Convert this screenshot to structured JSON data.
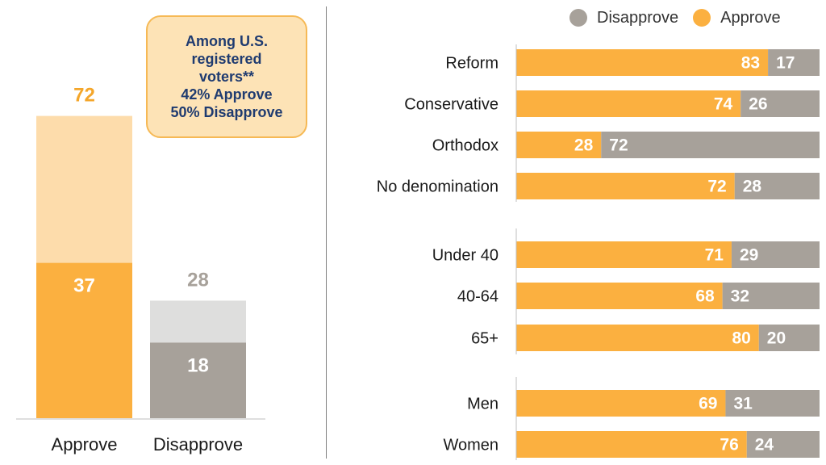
{
  "callout": {
    "lines": [
      "Among U.S.",
      "registered",
      "voters**",
      "42% Approve",
      "50% Disapprove"
    ]
  },
  "legend": {
    "disapprove": "Disapprove",
    "approve": "Approve"
  },
  "colors": {
    "approve": "#fbb040",
    "approve_light": "#fddcab",
    "disapprove": "#a7a19a",
    "disapprove_light": "#dededd",
    "approve_label": "#f4a62a",
    "disapprove_label": "#a7a19a"
  },
  "chart_data": [
    {
      "type": "bar",
      "categories": [
        "Approve",
        "Disapprove"
      ],
      "series": [
        {
          "values": [
            37,
            18
          ]
        },
        {
          "values": [
            72,
            28
          ]
        }
      ],
      "ylim": [
        0,
        100
      ],
      "grid": false
    },
    {
      "type": "bar",
      "orientation": "horizontal",
      "stacked": true,
      "groups": [
        {
          "categories": [
            "Reform",
            "Conservative",
            "Orthodox",
            "No denomination"
          ]
        },
        {
          "categories": [
            "Under 40",
            "40-64",
            "65+"
          ]
        },
        {
          "categories": [
            "Men",
            "Women"
          ]
        }
      ],
      "categories": [
        "Reform",
        "Conservative",
        "Orthodox",
        "No denomination",
        "Under 40",
        "40-64",
        "65+",
        "Men",
        "Women"
      ],
      "series": [
        {
          "name": "Approve",
          "values": [
            83,
            74,
            28,
            72,
            71,
            68,
            80,
            69,
            76
          ]
        },
        {
          "name": "Disapprove",
          "values": [
            17,
            26,
            72,
            28,
            29,
            32,
            20,
            31,
            24
          ]
        }
      ],
      "xlim": [
        0,
        100
      ],
      "legend": "top-right",
      "grid": false
    }
  ]
}
